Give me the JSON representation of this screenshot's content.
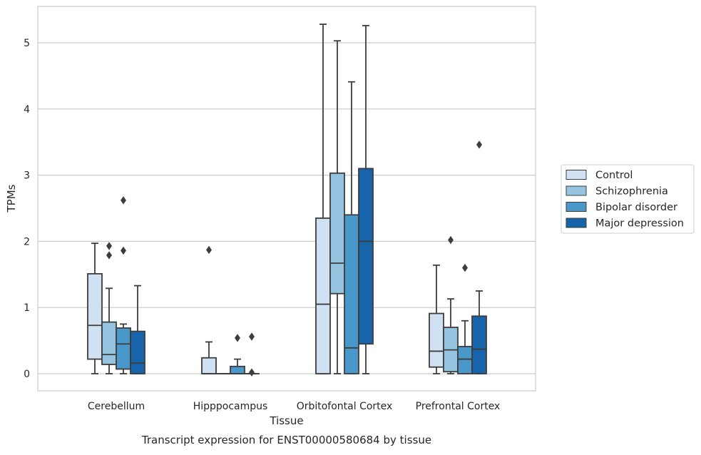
{
  "chart_data": {
    "type": "boxplot",
    "title": "Transcript expression for ENST00000580684 by tissue",
    "xlabel": "Tissue",
    "ylabel": "TPMs",
    "ylim": [
      -0.25,
      5.55
    ],
    "yticks": [
      0,
      1,
      2,
      3,
      4,
      5
    ],
    "grid": "horizontal",
    "legend_position": "right",
    "categories": [
      "Cerebellum",
      "Hipppocampus",
      "Orbitofontal Cortex",
      "Prefrontal Cortex"
    ],
    "series": [
      {
        "name": "Control",
        "color": "#d0e1f2",
        "boxes": [
          {
            "whislo": 0.0,
            "q1": 0.22,
            "med": 0.73,
            "q3": 1.51,
            "whishi": 1.97,
            "fliers": []
          },
          {
            "whislo": 0.0,
            "q1": 0.0,
            "med": 0.0,
            "q3": 0.24,
            "whishi": 0.48,
            "fliers": [
              1.87
            ]
          },
          {
            "whislo": 0.0,
            "q1": 0.0,
            "med": 1.05,
            "q3": 2.35,
            "whishi": 5.28,
            "fliers": []
          },
          {
            "whislo": 0.0,
            "q1": 0.1,
            "med": 0.34,
            "q3": 0.91,
            "whishi": 1.64,
            "fliers": []
          }
        ]
      },
      {
        "name": "Schizophrenia",
        "color": "#94c4df",
        "boxes": [
          {
            "whislo": 0.0,
            "q1": 0.14,
            "med": 0.29,
            "q3": 0.78,
            "whishi": 1.29,
            "fliers": [
              1.79,
              1.93
            ]
          },
          {
            "whislo": 0.0,
            "q1": 0.0,
            "med": 0.0,
            "q3": 0.0,
            "whishi": 0.0,
            "fliers": []
          },
          {
            "whislo": 0.0,
            "q1": 1.21,
            "med": 1.67,
            "q3": 3.03,
            "whishi": 5.03,
            "fliers": []
          },
          {
            "whislo": 0.0,
            "q1": 0.03,
            "med": 0.36,
            "q3": 0.7,
            "whishi": 1.13,
            "fliers": [
              2.02
            ]
          }
        ]
      },
      {
        "name": "Bipolar disorder",
        "color": "#4a98c9",
        "boxes": [
          {
            "whislo": 0.0,
            "q1": 0.07,
            "med": 0.45,
            "q3": 0.69,
            "whishi": 0.75,
            "fliers": [
              1.86,
              2.62
            ]
          },
          {
            "whislo": 0.0,
            "q1": 0.0,
            "med": 0.0,
            "q3": 0.11,
            "whishi": 0.22,
            "fliers": [
              0.54
            ]
          },
          {
            "whislo": 0.0,
            "q1": 0.0,
            "med": 0.39,
            "q3": 2.4,
            "whishi": 4.41,
            "fliers": []
          },
          {
            "whislo": 0.0,
            "q1": 0.0,
            "med": 0.22,
            "q3": 0.41,
            "whishi": 0.8,
            "fliers": [
              1.6
            ]
          }
        ]
      },
      {
        "name": "Major depression",
        "color": "#1764ab",
        "boxes": [
          {
            "whislo": 0.0,
            "q1": 0.0,
            "med": 0.16,
            "q3": 0.64,
            "whishi": 1.33,
            "fliers": []
          },
          {
            "whislo": 0.0,
            "q1": 0.0,
            "med": 0.0,
            "q3": 0.0,
            "whishi": 0.0,
            "fliers": [
              0.02,
              0.56
            ]
          },
          {
            "whislo": 0.0,
            "q1": 0.45,
            "med": 2.0,
            "q3": 3.1,
            "whishi": 5.26,
            "fliers": []
          },
          {
            "whislo": 0.0,
            "q1": 0.0,
            "med": 0.37,
            "q3": 0.87,
            "whishi": 1.25,
            "fliers": [
              3.46
            ]
          }
        ]
      }
    ]
  }
}
